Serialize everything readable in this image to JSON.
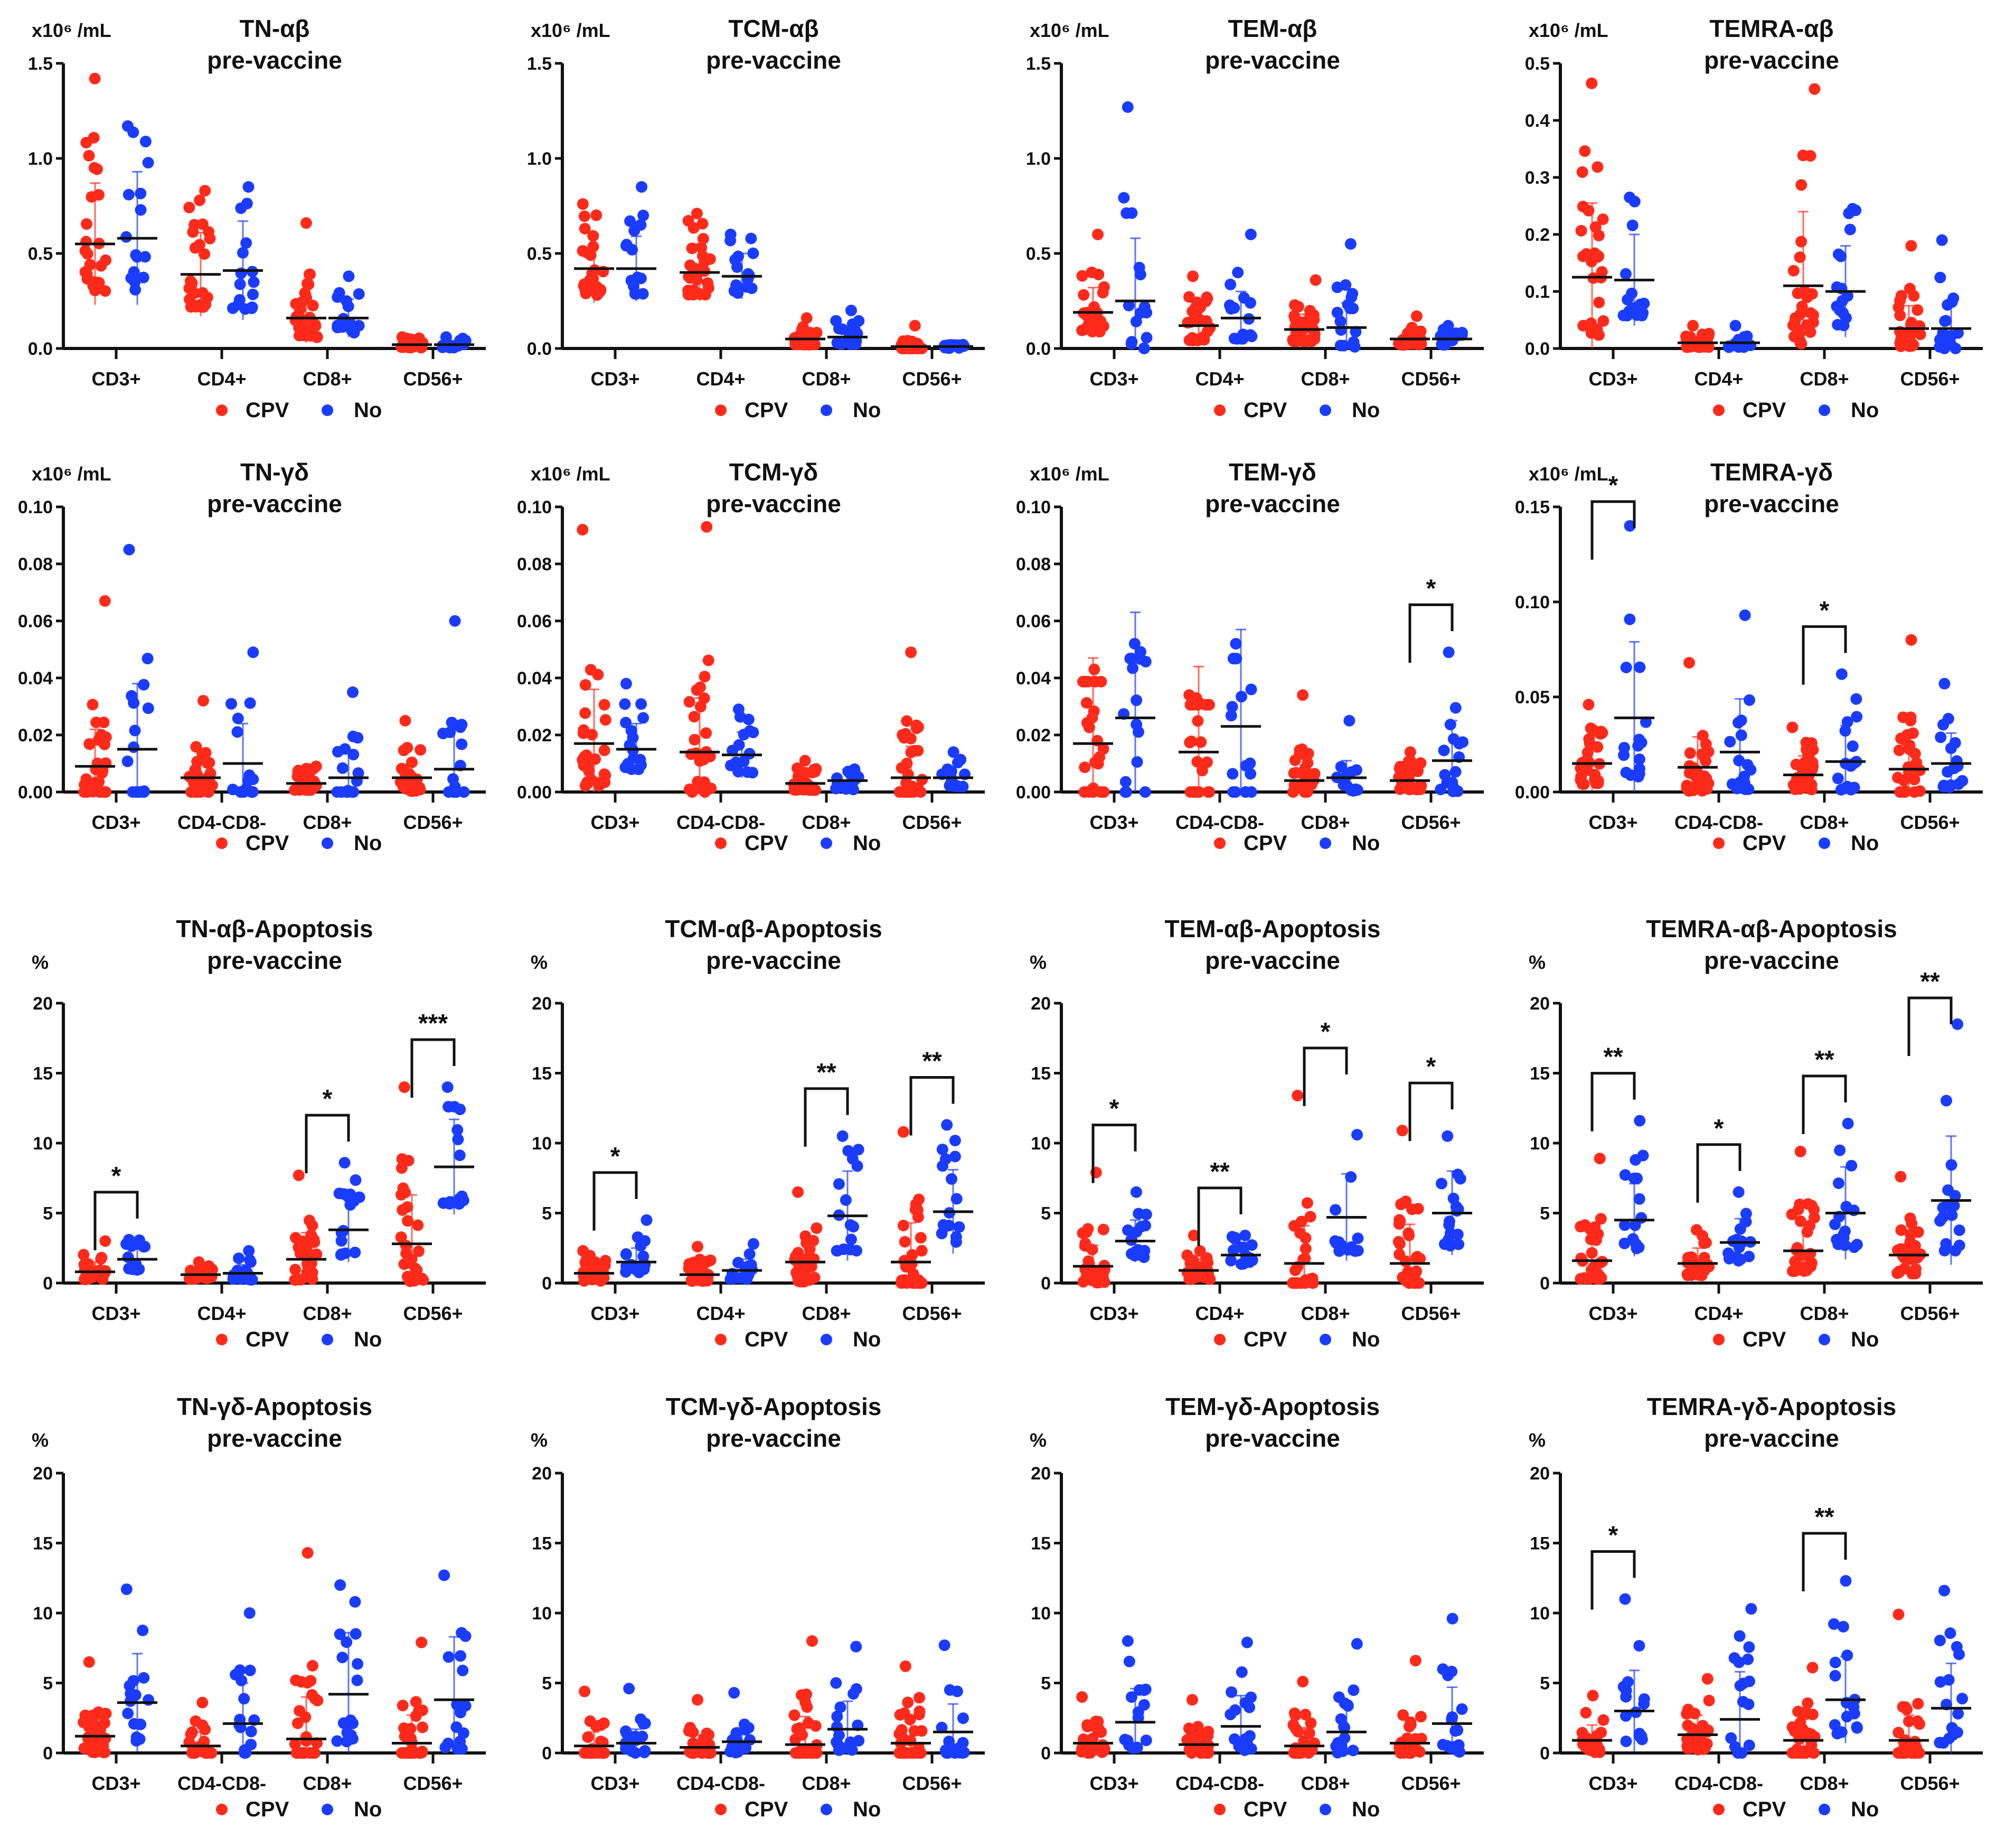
{
  "legend": {
    "cpv": "CPV",
    "no": "No"
  },
  "colors": {
    "cpv": "#ff2a1a",
    "no": "#1a3cff",
    "axis": "#111111"
  },
  "chart_data": [
    {
      "type": "scatter",
      "title": "TN-αβ",
      "subtitle": "pre-vaccine",
      "unit": "x10⁶ /mL",
      "ylim": [
        0,
        1.5
      ],
      "yticks": [
        "0.0",
        "0.5",
        "1.0",
        "1.5"
      ],
      "categories": [
        "CD3+",
        "CD4+",
        "CD8+",
        "CD56+"
      ],
      "series": [
        {
          "name": "CPV",
          "mean": [
            0.55,
            0.39,
            0.16,
            0.02
          ],
          "sd": [
            0.32,
            0.22,
            0.13,
            0.02
          ],
          "max": [
            1.42,
            0.83,
            0.66,
            0.06
          ]
        },
        {
          "name": "No",
          "mean": [
            0.58,
            0.41,
            0.16,
            0.02
          ],
          "sd": [
            0.35,
            0.26,
            0.1,
            0.02
          ],
          "max": [
            1.17,
            0.85,
            0.38,
            0.06
          ]
        }
      ],
      "significance": []
    },
    {
      "type": "scatter",
      "title": "TCM-αβ",
      "subtitle": "pre-vaccine",
      "unit": "x10⁶ /mL",
      "ylim": [
        0,
        1.5
      ],
      "yticks": [
        "0.0",
        "0.5",
        "1.0",
        "1.5"
      ],
      "categories": [
        "CD3+",
        "CD4+",
        "CD8+",
        "CD56+"
      ],
      "series": [
        {
          "name": "CPV",
          "mean": [
            0.42,
            0.4,
            0.05,
            0.01
          ],
          "sd": [
            0.18,
            0.15,
            0.04,
            0.02
          ],
          "max": [
            0.76,
            0.71,
            0.16,
            0.12
          ]
        },
        {
          "name": "No",
          "mean": [
            0.42,
            0.38,
            0.06,
            0.01
          ],
          "sd": [
            0.17,
            0.12,
            0.05,
            0.01
          ],
          "max": [
            0.85,
            0.6,
            0.2,
            0.02
          ]
        }
      ],
      "significance": []
    },
    {
      "type": "scatter",
      "title": "TEM-αβ",
      "subtitle": "pre-vaccine",
      "unit": "x10⁶ /mL",
      "ylim": [
        0,
        1.5
      ],
      "yticks": [
        "0.0",
        "0.5",
        "1.0",
        "1.5"
      ],
      "categories": [
        "CD3+",
        "CD4+",
        "CD8+",
        "CD56+"
      ],
      "series": [
        {
          "name": "CPV",
          "mean": [
            0.19,
            0.12,
            0.1,
            0.05
          ],
          "sd": [
            0.13,
            0.1,
            0.08,
            0.04
          ],
          "max": [
            0.6,
            0.38,
            0.36,
            0.17
          ]
        },
        {
          "name": "No",
          "mean": [
            0.25,
            0.16,
            0.11,
            0.05
          ],
          "sd": [
            0.33,
            0.14,
            0.13,
            0.04
          ],
          "max": [
            1.27,
            0.6,
            0.55,
            0.12
          ]
        }
      ],
      "significance": []
    },
    {
      "type": "scatter",
      "title": "TEMRA-αβ",
      "subtitle": "pre-vaccine",
      "unit": "x10⁶ /mL",
      "ylim": [
        0,
        0.5
      ],
      "yticks": [
        "0.0",
        "0.1",
        "0.2",
        "0.3",
        "0.4",
        "0.5"
      ],
      "categories": [
        "CD3+",
        "CD4+",
        "CD8+",
        "CD56+"
      ],
      "series": [
        {
          "name": "CPV",
          "mean": [
            0.125,
            0.01,
            0.11,
            0.035
          ],
          "sd": [
            0.13,
            0.01,
            0.13,
            0.04
          ],
          "max": [
            0.465,
            0.04,
            0.455,
            0.18
          ]
        },
        {
          "name": "No",
          "mean": [
            0.12,
            0.01,
            0.1,
            0.035
          ],
          "sd": [
            0.08,
            0.01,
            0.08,
            0.05
          ],
          "max": [
            0.265,
            0.04,
            0.245,
            0.19
          ]
        }
      ],
      "significance": []
    },
    {
      "type": "scatter",
      "title": "TN-γδ",
      "subtitle": "pre-vaccine",
      "unit": "x10⁶ /mL",
      "ylim": [
        0,
        0.1
      ],
      "yticks": [
        "0.00",
        "0.02",
        "0.04",
        "0.06",
        "0.08",
        "0.10"
      ],
      "categories": [
        "CD3+",
        "CD4-CD8-",
        "CD8+",
        "CD56+"
      ],
      "series": [
        {
          "name": "CPV",
          "mean": [
            0.009,
            0.005,
            0.003,
            0.005
          ],
          "sd": [
            0.013,
            0.007,
            0.003,
            0.006
          ],
          "max": [
            0.067,
            0.032,
            0.009,
            0.025
          ]
        },
        {
          "name": "No",
          "mean": [
            0.015,
            0.01,
            0.005,
            0.008
          ],
          "sd": [
            0.023,
            0.014,
            0.009,
            0.017
          ],
          "max": [
            0.085,
            0.049,
            0.035,
            0.06
          ]
        }
      ],
      "significance": []
    },
    {
      "type": "scatter",
      "title": "TCM-γδ",
      "subtitle": "pre-vaccine",
      "unit": "x10⁶ /mL",
      "ylim": [
        0,
        0.1
      ],
      "yticks": [
        "0.00",
        "0.02",
        "0.04",
        "0.06",
        "0.08",
        "0.10"
      ],
      "categories": [
        "CD3+",
        "CD4-CD8-",
        "CD8+",
        "CD56+"
      ],
      "series": [
        {
          "name": "CPV",
          "mean": [
            0.017,
            0.014,
            0.003,
            0.005
          ],
          "sd": [
            0.019,
            0.019,
            0.003,
            0.011
          ],
          "max": [
            0.092,
            0.093,
            0.011,
            0.049
          ]
        },
        {
          "name": "No",
          "mean": [
            0.015,
            0.013,
            0.004,
            0.005
          ],
          "sd": [
            0.009,
            0.008,
            0.004,
            0.004
          ],
          "max": [
            0.038,
            0.029,
            0.008,
            0.014
          ]
        }
      ],
      "significance": []
    },
    {
      "type": "scatter",
      "title": "TEM-γδ",
      "subtitle": "pre-vaccine",
      "unit": "x10⁶ /mL",
      "ylim": [
        0,
        0.1
      ],
      "yticks": [
        "0.00",
        "0.02",
        "0.04",
        "0.06",
        "0.08",
        "0.10"
      ],
      "categories": [
        "CD3+",
        "CD4-CD8-",
        "CD8+",
        "CD56+"
      ],
      "series": [
        {
          "name": "CPV",
          "mean": [
            0.017,
            0.014,
            0.004,
            0.004
          ],
          "sd": [
            0.03,
            0.03,
            0.008,
            0.004
          ],
          "max": [
            0.043,
            0.034,
            0.034,
            0.014
          ]
        },
        {
          "name": "No",
          "mean": [
            0.026,
            0.023,
            0.005,
            0.011
          ],
          "sd": [
            0.037,
            0.034,
            0.006,
            0.014
          ],
          "max": [
            0.052,
            0.052,
            0.025,
            0.049
          ]
        }
      ],
      "significance": [
        {
          "category": "CD56+",
          "label": "*"
        }
      ]
    },
    {
      "type": "scatter",
      "title": "TEMRA-γδ",
      "subtitle": "pre-vaccine",
      "unit": "x10⁶ /mL",
      "ylim": [
        0,
        0.15
      ],
      "yticks": [
        "0.00",
        "0.05",
        "0.10",
        "0.15"
      ],
      "categories": [
        "CD3+",
        "CD4-CD8-",
        "CD8+",
        "CD56+"
      ],
      "series": [
        {
          "name": "CPV",
          "mean": [
            0.015,
            0.013,
            0.009,
            0.012
          ],
          "sd": [
            0.014,
            0.016,
            0.01,
            0.02
          ],
          "max": [
            0.046,
            0.068,
            0.034,
            0.08
          ]
        },
        {
          "name": "No",
          "mean": [
            0.039,
            0.021,
            0.016,
            0.015
          ],
          "sd": [
            0.04,
            0.028,
            0.019,
            0.016
          ],
          "max": [
            0.14,
            0.093,
            0.062,
            0.057
          ]
        }
      ],
      "significance": [
        {
          "category": "CD3+",
          "label": "*"
        },
        {
          "category": "CD8+",
          "label": "*"
        }
      ]
    },
    {
      "type": "scatter",
      "title": "TN-αβ-Apoptosis",
      "subtitle": "pre-vaccine",
      "unit": "%",
      "ylim": [
        0,
        20
      ],
      "yticks": [
        "0",
        "5",
        "10",
        "15",
        "20"
      ],
      "categories": [
        "CD3+",
        "CD4+",
        "CD8+",
        "CD56+"
      ],
      "series": [
        {
          "name": "CPV",
          "mean": [
            0.8,
            0.6,
            1.7,
            2.8
          ],
          "sd": [
            0.7,
            0.4,
            1.9,
            3.5
          ],
          "max": [
            3.0,
            1.5,
            7.7,
            14.0
          ]
        },
        {
          "name": "No",
          "mean": [
            1.7,
            0.7,
            3.8,
            8.3
          ],
          "sd": [
            1.0,
            0.6,
            2.3,
            3.4
          ],
          "max": [
            3.1,
            2.3,
            8.6,
            14.0
          ]
        }
      ],
      "significance": [
        {
          "category": "CD3+",
          "label": "*"
        },
        {
          "category": "CD8+",
          "label": "*"
        },
        {
          "category": "CD56+",
          "label": "***"
        }
      ]
    },
    {
      "type": "scatter",
      "title": "TCM-αβ-Apoptosis",
      "subtitle": "pre-vaccine",
      "unit": "%",
      "ylim": [
        0,
        20
      ],
      "yticks": [
        "0",
        "5",
        "10",
        "15",
        "20"
      ],
      "categories": [
        "CD3+",
        "CD4+",
        "CD8+",
        "CD56+"
      ],
      "series": [
        {
          "name": "CPV",
          "mean": [
            0.7,
            0.6,
            1.5,
            1.5
          ],
          "sd": [
            0.7,
            0.6,
            1.8,
            2.8
          ],
          "max": [
            2.3,
            2.6,
            6.5,
            10.8
          ]
        },
        {
          "name": "No",
          "mean": [
            1.5,
            0.9,
            4.8,
            5.1
          ],
          "sd": [
            1.0,
            0.8,
            3.2,
            3.0
          ],
          "max": [
            4.5,
            2.8,
            10.5,
            11.3
          ]
        }
      ],
      "significance": [
        {
          "category": "CD3+",
          "label": "*"
        },
        {
          "category": "CD8+",
          "label": "**"
        },
        {
          "category": "CD56+",
          "label": "**"
        }
      ]
    },
    {
      "type": "scatter",
      "title": "TEM-αβ-Apoptosis",
      "subtitle": "pre-vaccine",
      "unit": "%",
      "ylim": [
        0,
        20
      ],
      "yticks": [
        "0",
        "5",
        "10",
        "15",
        "20"
      ],
      "categories": [
        "CD3+",
        "CD4+",
        "CD8+",
        "CD56+"
      ],
      "series": [
        {
          "name": "CPV",
          "mean": [
            1.2,
            0.9,
            1.4,
            1.4
          ],
          "sd": [
            1.5,
            0.8,
            2.7,
            2.8
          ],
          "max": [
            7.9,
            3.4,
            13.4,
            10.9
          ]
        },
        {
          "name": "No",
          "mean": [
            3.0,
            2.0,
            4.7,
            5.0
          ],
          "sd": [
            1.5,
            0.9,
            3.1,
            3.0
          ],
          "max": [
            6.5,
            3.4,
            10.6,
            10.5
          ]
        }
      ],
      "significance": [
        {
          "category": "CD3+",
          "label": "*"
        },
        {
          "category": "CD4+",
          "label": "**"
        },
        {
          "category": "CD8+",
          "label": "*"
        },
        {
          "category": "CD56+",
          "label": "*"
        }
      ]
    },
    {
      "type": "scatter",
      "title": "TEMRA-αβ-Apoptosis",
      "subtitle": "pre-vaccine",
      "unit": "%",
      "ylim": [
        0,
        20
      ],
      "yticks": [
        "0",
        "5",
        "10",
        "15",
        "20"
      ],
      "categories": [
        "CD3+",
        "CD4+",
        "CD8+",
        "CD56+"
      ],
      "series": [
        {
          "name": "CPV",
          "mean": [
            1.6,
            1.4,
            2.3,
            2.0
          ],
          "sd": [
            1.7,
            1.1,
            1.9,
            1.7
          ],
          "max": [
            8.9,
            3.8,
            9.4,
            7.6
          ]
        },
        {
          "name": "No",
          "mean": [
            4.5,
            2.9,
            5.0,
            5.9
          ],
          "sd": [
            2.6,
            1.7,
            3.3,
            4.6
          ],
          "max": [
            11.6,
            6.5,
            11.4,
            18.5
          ]
        }
      ],
      "significance": [
        {
          "category": "CD3+",
          "label": "**"
        },
        {
          "category": "CD4+",
          "label": "*"
        },
        {
          "category": "CD8+",
          "label": "**"
        },
        {
          "category": "CD56+",
          "label": "**"
        }
      ]
    },
    {
      "type": "scatter",
      "title": "TN-γδ-Apoptosis",
      "subtitle": "pre-vaccine",
      "unit": "%",
      "ylim": [
        0,
        20
      ],
      "yticks": [
        "0",
        "5",
        "10",
        "15",
        "20"
      ],
      "categories": [
        "CD3+",
        "CD4-CD8-",
        "CD8+",
        "CD56+"
      ],
      "series": [
        {
          "name": "CPV",
          "mean": [
            1.2,
            0.5,
            1.0,
            0.7
          ],
          "sd": [
            1.5,
            1.0,
            3.0,
            2.0
          ],
          "max": [
            6.5,
            3.6,
            14.3,
            7.9
          ]
        },
        {
          "name": "No",
          "mean": [
            3.6,
            2.1,
            4.2,
            3.8
          ],
          "sd": [
            3.5,
            2.9,
            4.4,
            4.5
          ],
          "max": [
            11.7,
            10.0,
            12.0,
            12.7
          ]
        }
      ],
      "significance": []
    },
    {
      "type": "scatter",
      "title": "TCM-γδ-Apoptosis",
      "subtitle": "pre-vaccine",
      "unit": "%",
      "ylim": [
        0,
        20
      ],
      "yticks": [
        "0",
        "5",
        "10",
        "15",
        "20"
      ],
      "categories": [
        "CD3+",
        "CD4-CD8-",
        "CD8+",
        "CD56+"
      ],
      "series": [
        {
          "name": "CPV",
          "mean": [
            0.5,
            0.4,
            0.6,
            0.7
          ],
          "sd": [
            1.0,
            0.9,
            2.0,
            1.8
          ],
          "max": [
            4.4,
            3.8,
            8.0,
            6.2
          ]
        },
        {
          "name": "No",
          "mean": [
            0.7,
            0.8,
            1.7,
            1.5
          ],
          "sd": [
            1.0,
            1.0,
            2.0,
            2.0
          ],
          "max": [
            4.6,
            4.3,
            7.6,
            7.7
          ]
        }
      ],
      "significance": []
    },
    {
      "type": "scatter",
      "title": "TEM-γδ-Apoptosis",
      "subtitle": "pre-vaccine",
      "unit": "%",
      "ylim": [
        0,
        20
      ],
      "yticks": [
        "0",
        "5",
        "10",
        "15",
        "20"
      ],
      "categories": [
        "CD3+",
        "CD4-CD8-",
        "CD8+",
        "CD56+"
      ],
      "series": [
        {
          "name": "CPV",
          "mean": [
            0.7,
            0.6,
            0.5,
            0.7
          ],
          "sd": [
            1.0,
            0.9,
            1.3,
            1.4
          ],
          "max": [
            4.0,
            3.8,
            5.1,
            6.6
          ]
        },
        {
          "name": "No",
          "mean": [
            2.2,
            1.9,
            1.5,
            2.1
          ],
          "sd": [
            2.4,
            2.2,
            1.9,
            2.6
          ],
          "max": [
            8.0,
            7.9,
            7.8,
            9.6
          ]
        }
      ],
      "significance": []
    },
    {
      "type": "scatter",
      "title": "TEMRA-γδ-Apoptosis",
      "subtitle": "pre-vaccine",
      "unit": "%",
      "ylim": [
        0,
        20
      ],
      "yticks": [
        "0",
        "5",
        "10",
        "15",
        "20"
      ],
      "categories": [
        "CD3+",
        "CD4-CD8-",
        "CD8+",
        "CD56+"
      ],
      "series": [
        {
          "name": "CPV",
          "mean": [
            0.9,
            1.3,
            0.9,
            0.9
          ],
          "sd": [
            1.1,
            1.4,
            1.5,
            1.8
          ],
          "max": [
            4.1,
            5.3,
            6.1,
            9.9
          ]
        },
        {
          "name": "No",
          "mean": [
            3.0,
            2.4,
            3.8,
            3.2
          ],
          "sd": [
            2.9,
            3.4,
            3.1,
            3.2
          ],
          "max": [
            11.0,
            10.3,
            12.3,
            11.6
          ]
        }
      ],
      "significance": [
        {
          "category": "CD3+",
          "label": "*"
        },
        {
          "category": "CD8+",
          "label": "**"
        }
      ]
    }
  ]
}
